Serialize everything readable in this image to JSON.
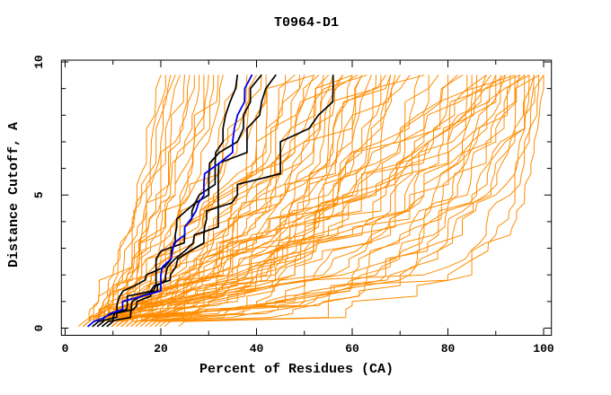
{
  "window": {
    "background": "#ffffff"
  },
  "chart_data": {
    "type": "line",
    "title": "T0964-D1",
    "xlabel": "Percent of Residues (CA)",
    "ylabel": "Distance Cutoff, A",
    "xlim": [
      0,
      100
    ],
    "ylim": [
      0,
      10
    ],
    "grid": false,
    "legend": "none",
    "frame": "full-box-with-mirrored-inward-ticks",
    "x_major_ticks": [
      0,
      20,
      40,
      60,
      80,
      100
    ],
    "x_tick_labels": [
      "0",
      "20",
      "40",
      "60",
      "80",
      "100"
    ],
    "x_minor_step": 10,
    "y_major_ticks": [
      0,
      5,
      10
    ],
    "y_tick_labels": [
      "0",
      "5",
      "10"
    ],
    "y_minor_step": 1,
    "colors": {
      "predictions": "#ff8c00",
      "reference": "#000000",
      "highlighted": "#0000ee",
      "axis": "#000000"
    },
    "anchor_cutoffs": [
      0.25,
      1,
      2,
      3.5,
      5,
      7,
      9.5
    ],
    "series_groups": [
      {
        "name": "prediction-curves",
        "color": "#ff8c00",
        "stroke_width": 1,
        "curves_percent_at_anchor_cutoffs": [
          [
            4,
            7,
            10,
            13,
            15,
            17,
            20
          ],
          [
            5,
            8,
            11,
            13,
            16,
            18,
            21
          ],
          [
            5,
            7,
            10,
            14,
            16,
            19,
            22
          ],
          [
            6,
            9,
            12,
            15,
            17,
            20,
            23
          ],
          [
            5,
            8,
            12,
            16,
            18,
            21,
            24
          ],
          [
            6,
            10,
            13,
            16,
            19,
            22,
            25
          ],
          [
            7,
            10,
            14,
            17,
            20,
            23,
            26
          ],
          [
            6,
            9,
            13,
            17,
            21,
            24,
            27
          ],
          [
            7,
            11,
            15,
            18,
            22,
            25,
            28
          ],
          [
            8,
            12,
            16,
            20,
            23,
            26,
            29
          ],
          [
            7,
            11,
            16,
            21,
            24,
            27,
            30
          ],
          [
            8,
            13,
            17,
            22,
            25,
            28,
            31
          ],
          [
            6,
            10,
            15,
            19,
            23,
            27,
            32
          ],
          [
            9,
            14,
            18,
            23,
            26,
            30,
            33
          ],
          [
            7,
            12,
            18,
            24,
            28,
            32,
            36
          ],
          [
            8,
            13,
            19,
            25,
            30,
            34,
            38
          ],
          [
            9,
            15,
            21,
            27,
            32,
            36,
            40
          ],
          [
            8,
            14,
            22,
            29,
            34,
            38,
            42
          ],
          [
            10,
            16,
            24,
            31,
            36,
            40,
            44
          ],
          [
            9,
            17,
            26,
            33,
            38,
            42,
            46
          ],
          [
            11,
            18,
            27,
            35,
            40,
            44,
            48
          ],
          [
            10,
            19,
            29,
            37,
            42,
            46,
            50
          ],
          [
            12,
            20,
            30,
            38,
            44,
            48,
            52
          ],
          [
            11,
            21,
            32,
            40,
            46,
            50,
            54
          ],
          [
            13,
            22,
            33,
            42,
            48,
            52,
            56
          ],
          [
            12,
            23,
            35,
            44,
            50,
            54,
            58
          ],
          [
            14,
            24,
            36,
            45,
            51,
            56,
            60
          ],
          [
            13,
            25,
            38,
            47,
            53,
            58,
            62
          ],
          [
            15,
            26,
            39,
            48,
            55,
            60,
            64
          ],
          [
            14,
            27,
            41,
            50,
            57,
            62,
            66
          ],
          [
            16,
            28,
            42,
            52,
            59,
            64,
            68
          ],
          [
            15,
            29,
            44,
            54,
            61,
            66,
            70
          ],
          [
            10,
            15,
            20,
            28,
            35,
            45,
            55
          ],
          [
            9,
            13,
            18,
            25,
            32,
            42,
            52
          ],
          [
            11,
            16,
            22,
            30,
            38,
            48,
            58
          ],
          [
            12,
            17,
            23,
            32,
            40,
            50,
            62
          ],
          [
            8,
            12,
            17,
            24,
            31,
            40,
            49
          ],
          [
            10,
            14,
            19,
            27,
            36,
            47,
            60
          ],
          [
            11,
            17,
            25,
            34,
            43,
            52,
            63
          ],
          [
            13,
            19,
            28,
            37,
            46,
            56,
            65
          ],
          [
            12,
            18,
            26,
            36,
            45,
            55,
            67
          ],
          [
            14,
            21,
            31,
            41,
            50,
            60,
            69
          ],
          [
            10,
            20,
            32,
            44,
            54,
            63,
            72
          ],
          [
            12,
            22,
            35,
            47,
            57,
            66,
            74
          ],
          [
            11,
            24,
            38,
            50,
            60,
            69,
            76
          ],
          [
            13,
            26,
            40,
            52,
            62,
            71,
            78
          ],
          [
            12,
            28,
            43,
            55,
            65,
            73,
            80
          ],
          [
            14,
            30,
            45,
            57,
            67,
            75,
            82
          ],
          [
            13,
            32,
            48,
            60,
            69,
            77,
            84
          ],
          [
            15,
            34,
            50,
            62,
            71,
            79,
            86
          ],
          [
            14,
            36,
            52,
            64,
            73,
            81,
            88
          ],
          [
            16,
            38,
            54,
            66,
            75,
            83,
            90
          ],
          [
            15,
            40,
            56,
            68,
            77,
            85,
            91
          ],
          [
            17,
            42,
            58,
            70,
            79,
            86,
            92
          ],
          [
            16,
            44,
            60,
            72,
            81,
            88,
            93
          ],
          [
            18,
            45,
            62,
            74,
            82,
            89,
            94
          ],
          [
            17,
            46,
            63,
            75,
            84,
            90,
            95
          ],
          [
            19,
            48,
            65,
            77,
            85,
            91,
            96
          ],
          [
            18,
            50,
            67,
            78,
            86,
            92,
            97
          ],
          [
            20,
            52,
            68,
            80,
            88,
            93,
            98
          ],
          [
            19,
            54,
            70,
            81,
            89,
            94,
            99
          ],
          [
            21,
            55,
            72,
            83,
            90,
            95,
            100
          ],
          [
            9,
            18,
            30,
            45,
            58,
            70,
            85
          ],
          [
            10,
            22,
            36,
            52,
            64,
            76,
            90
          ],
          [
            8,
            16,
            28,
            42,
            56,
            70,
            88
          ],
          [
            11,
            25,
            40,
            56,
            68,
            80,
            94
          ],
          [
            12,
            30,
            48,
            64,
            75,
            85,
            97
          ],
          [
            10,
            26,
            44,
            60,
            72,
            83,
            96
          ],
          [
            25,
            60,
            85,
            93,
            96,
            98,
            100
          ],
          [
            22,
            55,
            80,
            90,
            94,
            97,
            99
          ],
          [
            20,
            50,
            75,
            88,
            93,
            96,
            98
          ],
          [
            9,
            20,
            34,
            50,
            63,
            76,
            92
          ],
          [
            5,
            9,
            14,
            20,
            26,
            33,
            41
          ],
          [
            6,
            11,
            17,
            25,
            33,
            43,
            53
          ],
          [
            7,
            13,
            21,
            31,
            41,
            51,
            61
          ],
          [
            8,
            15,
            24,
            35,
            46,
            57,
            68
          ],
          [
            9,
            17,
            27,
            39,
            51,
            63,
            75
          ],
          [
            10,
            19,
            31,
            44,
            57,
            70,
            83
          ],
          [
            11,
            21,
            34,
            48,
            62,
            76,
            89
          ],
          [
            12,
            23,
            37,
            52,
            66,
            80,
            95
          ]
        ]
      },
      {
        "name": "reference-curves",
        "color": "#000000",
        "stroke_width": 1.7,
        "curves_percent_at_anchor_cutoffs": [
          [
            7,
            11,
            17,
            23,
            28,
            33,
            36
          ],
          [
            8,
            13,
            19,
            25,
            30,
            36,
            41
          ],
          [
            9,
            14,
            21,
            27,
            32,
            38,
            44
          ],
          [
            10,
            15,
            22,
            29,
            36,
            45,
            56
          ]
        ]
      },
      {
        "name": "highlighted-curve",
        "color": "#0000ee",
        "stroke_width": 1.8,
        "curves_percent_at_anchor_cutoffs": [
          [
            6,
            12,
            20,
            25,
            29,
            35,
            39
          ]
        ]
      }
    ]
  }
}
